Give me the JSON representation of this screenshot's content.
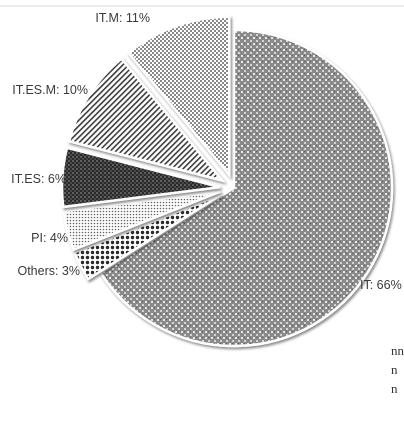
{
  "chart_data": {
    "type": "pie",
    "title": "",
    "slices": [
      {
        "name": "IT",
        "value": 66,
        "label": "IT: 66%",
        "pattern": "grid",
        "exploded": false
      },
      {
        "name": "Others",
        "value": 3,
        "label": "Others: 3%",
        "pattern": "dots-large",
        "exploded": true
      },
      {
        "name": "PI",
        "value": 4,
        "label": "PI: 4%",
        "pattern": "dots-light",
        "exploded": true
      },
      {
        "name": "IT.ES",
        "value": 6,
        "label": "IT.ES: 6%",
        "pattern": "dark-check",
        "exploded": true
      },
      {
        "name": "IT.ES.M",
        "value": 10,
        "label": "IT.ES.M: 10%",
        "pattern": "diagonal",
        "exploded": true
      },
      {
        "name": "IT.M",
        "value": 11,
        "label": "IT.M: 11%",
        "pattern": "dots-fine",
        "exploded": true
      }
    ],
    "legend": "none",
    "colors": {
      "ink": "#333333",
      "label": "#3a3a3a",
      "background": "#ffffff"
    }
  },
  "edge_text": [
    "nn",
    "n",
    "n"
  ]
}
